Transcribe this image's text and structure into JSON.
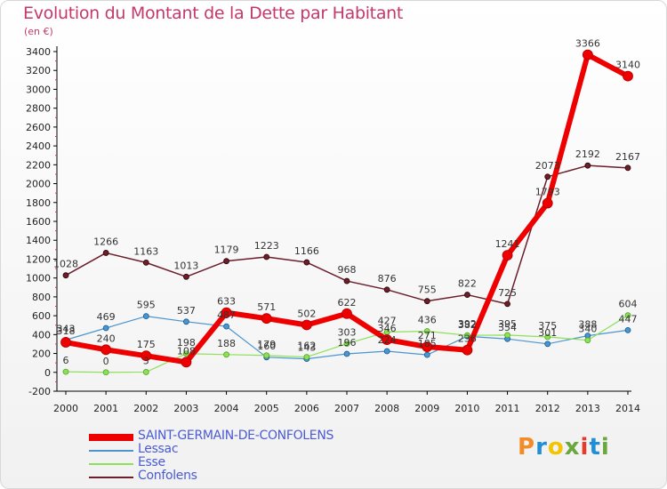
{
  "header": {
    "title": "Evolution du Montant de la Dette par Habitant",
    "subtitle": "(en €)"
  },
  "logo": {
    "letters": [
      "P",
      "r",
      "o",
      "x",
      "i",
      "t",
      "i"
    ],
    "colors": [
      "#f28c28",
      "#1f8fd6",
      "#f2c500",
      "#6aa83b",
      "#e8392b",
      "#1f8fd6",
      "#6aa83b"
    ]
  },
  "chart_data": {
    "type": "line",
    "x": [
      2000,
      2001,
      2002,
      2003,
      2004,
      2005,
      2006,
      2007,
      2008,
      2009,
      2010,
      2011,
      2012,
      2013,
      2014
    ],
    "ylim": [
      -200,
      3400
    ],
    "yticks": [
      -200,
      0,
      200,
      400,
      600,
      800,
      1000,
      1200,
      1400,
      1600,
      1800,
      2000,
      2200,
      2400,
      2600,
      2800,
      3000,
      3200,
      3400
    ],
    "grid": false,
    "legend_position": "bottom-left",
    "series": [
      {
        "name": "Confolens",
        "color": "#6b1f2a",
        "values": [
          1028,
          1266,
          1163,
          1013,
          1179,
          1223,
          1166,
          968,
          876,
          755,
          822,
          725,
          2073,
          2192,
          2167
        ]
      },
      {
        "name": "Lessac",
        "color": "#4c95cf",
        "values": [
          343,
          469,
          595,
          537,
          487,
          160,
          143,
          196,
          224,
          185,
          382,
          354,
          301,
          388,
          447
        ]
      },
      {
        "name": "Esse",
        "color": "#8ee05a",
        "values": [
          6,
          0,
          3,
          198,
          188,
          179,
          162,
          303,
          427,
          436,
          392,
          395,
          375,
          340,
          604
        ]
      },
      {
        "name": "SAINT-GERMAIN-DE-CONFOLENS",
        "color": "#ee0000",
        "values": [
          318,
          240,
          175,
          108,
          633,
          571,
          502,
          622,
          346,
          271,
          236,
          1241,
          1793,
          3366,
          3140
        ]
      }
    ]
  }
}
